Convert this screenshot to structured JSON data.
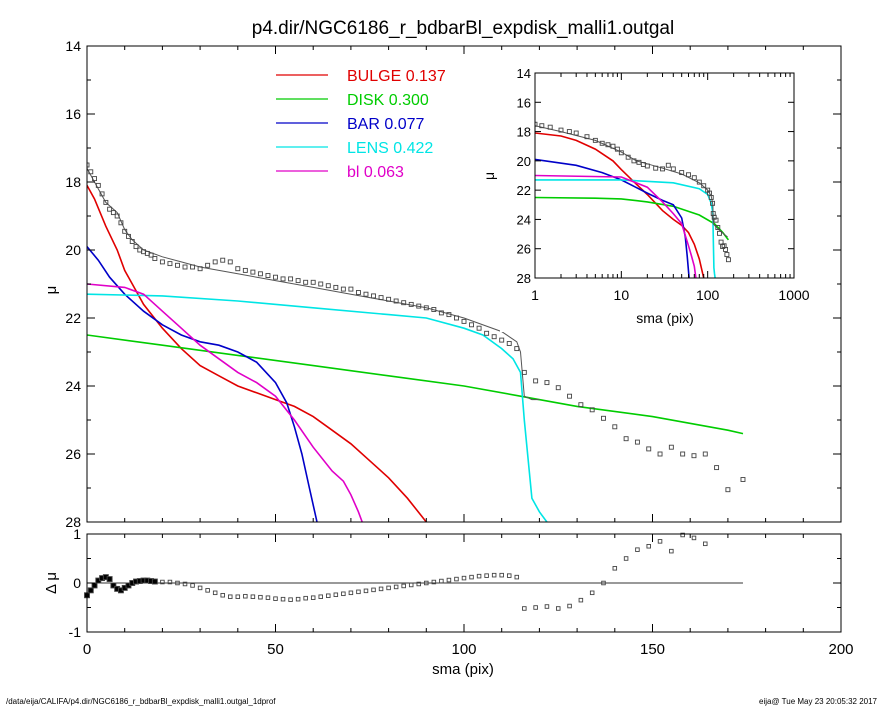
{
  "title": "p4.dir/NGC6186_r_bdbarBl_expdisk_malli1.outgal",
  "footer": {
    "path": "/data/eija/CALIFA/p4.dir/NGC6186_r_bdbarBl_expdisk_malli1.outgal_1dprof",
    "stamp": "eija@  Tue May 23 20:05:32 2017"
  },
  "colors": {
    "bulge": "#e00000",
    "disk": "#00cc00",
    "bar": "#0000c8",
    "lens": "#00e5e5",
    "bl": "#e000c8",
    "total": "#555555",
    "data": "#444444"
  },
  "chart_data": [
    {
      "id": "main",
      "type": "line",
      "xlabel": "sma (pix)",
      "ylabel": "μ",
      "xlim": [
        0,
        200
      ],
      "ylim": [
        28,
        14
      ],
      "xticks": [
        "0",
        "50",
        "100",
        "150",
        "200"
      ],
      "yticks": [
        "14",
        "16",
        "18",
        "20",
        "22",
        "24",
        "26",
        "28"
      ],
      "legend": [
        {
          "label": "BULGE",
          "value": "0.137",
          "series": "bulge"
        },
        {
          "label": "DISK",
          "value": "0.300",
          "series": "disk"
        },
        {
          "label": "BAR",
          "value": "0.077",
          "series": "bar"
        },
        {
          "label": "LENS",
          "value": "0.422",
          "series": "lens"
        },
        {
          "label": "bl",
          "value": "0.063",
          "series": "bl"
        }
      ],
      "series": [
        {
          "key": "bulge",
          "x": [
            0,
            2,
            5,
            8,
            10,
            15,
            20,
            25,
            30,
            35,
            40,
            45,
            50,
            55,
            60,
            65,
            70,
            75,
            80,
            85,
            90
          ],
          "y": [
            18.1,
            18.5,
            19.3,
            20.0,
            20.6,
            21.6,
            22.3,
            22.9,
            23.4,
            23.7,
            24.0,
            24.2,
            24.4,
            24.6,
            24.9,
            25.3,
            25.7,
            26.2,
            26.7,
            27.3,
            28.0
          ]
        },
        {
          "key": "disk",
          "x": [
            0,
            20,
            40,
            60,
            80,
            100,
            115,
            130,
            150,
            170,
            174
          ],
          "y": [
            22.5,
            22.8,
            23.1,
            23.4,
            23.7,
            24.0,
            24.3,
            24.6,
            24.9,
            25.3,
            25.4
          ]
        },
        {
          "key": "bar",
          "x": [
            0,
            3,
            6,
            10,
            15,
            20,
            25,
            30,
            35,
            40,
            45,
            50,
            53,
            55,
            57,
            59,
            61
          ],
          "y": [
            19.9,
            20.3,
            20.8,
            21.3,
            21.8,
            22.2,
            22.5,
            22.7,
            22.8,
            23.0,
            23.3,
            23.9,
            24.5,
            25.2,
            26.0,
            27.0,
            28.0
          ]
        },
        {
          "key": "lens",
          "x": [
            0,
            20,
            40,
            60,
            80,
            90,
            100,
            105,
            110,
            113,
            115,
            116,
            118,
            120,
            122
          ],
          "y": [
            21.3,
            21.35,
            21.5,
            21.7,
            21.9,
            22.0,
            22.3,
            22.5,
            22.9,
            23.2,
            23.6,
            25.0,
            27.3,
            27.7,
            28.0
          ]
        },
        {
          "key": "bl",
          "x": [
            0,
            10,
            15,
            20,
            25,
            30,
            35,
            40,
            45,
            50,
            55,
            60,
            65,
            68,
            70,
            72,
            73
          ],
          "y": [
            21.0,
            21.1,
            21.3,
            21.8,
            22.3,
            22.8,
            23.2,
            23.6,
            23.9,
            24.3,
            25.0,
            25.8,
            26.5,
            26.8,
            27.2,
            27.7,
            28.0
          ]
        },
        {
          "key": "total",
          "x": [
            0,
            2,
            5,
            8,
            10,
            12,
            15,
            20,
            25,
            30,
            35,
            40,
            50,
            60,
            70,
            80,
            90,
            100,
            110,
            114,
            115,
            116,
            118,
            120
          ],
          "y": [
            17.6,
            18.0,
            18.6,
            18.9,
            19.4,
            19.7,
            20.0,
            20.2,
            20.35,
            20.5,
            20.6,
            20.7,
            20.9,
            21.1,
            21.3,
            21.5,
            21.7,
            22.0,
            22.4,
            22.7,
            23.0,
            24.3,
            24.4,
            24.4
          ]
        },
        {
          "key": "data",
          "style": "points",
          "x": [
            0,
            1,
            2,
            3,
            4,
            5,
            6,
            7,
            8,
            9,
            10,
            11,
            12,
            13,
            14,
            15,
            16,
            17,
            18,
            20,
            22,
            24,
            26,
            28,
            30,
            32,
            34,
            36,
            38,
            40,
            42,
            44,
            46,
            48,
            50,
            52,
            54,
            56,
            58,
            60,
            62,
            64,
            66,
            68,
            70,
            72,
            74,
            76,
            78,
            80,
            82,
            84,
            86,
            88,
            90,
            92,
            94,
            96,
            98,
            100,
            102,
            104,
            106,
            108,
            110,
            112,
            114,
            116,
            119,
            122,
            125,
            128,
            131,
            134,
            137,
            140,
            143,
            146,
            149,
            152,
            155,
            158,
            161,
            164,
            167,
            170,
            174
          ],
          "y": [
            17.5,
            17.7,
            17.9,
            18.1,
            18.35,
            18.6,
            18.8,
            18.9,
            19.0,
            19.2,
            19.45,
            19.6,
            19.75,
            19.9,
            20.0,
            20.05,
            20.1,
            20.15,
            20.25,
            20.35,
            20.4,
            20.45,
            20.5,
            20.5,
            20.55,
            20.45,
            20.35,
            20.3,
            20.35,
            20.55,
            20.6,
            20.65,
            20.7,
            20.75,
            20.8,
            20.85,
            20.85,
            20.9,
            20.95,
            20.95,
            21.0,
            21.05,
            21.1,
            21.15,
            21.15,
            21.25,
            21.3,
            21.35,
            21.4,
            21.45,
            21.5,
            21.55,
            21.6,
            21.65,
            21.7,
            21.75,
            21.85,
            21.9,
            22.0,
            22.1,
            22.2,
            22.3,
            22.45,
            22.55,
            22.65,
            22.75,
            22.9,
            23.6,
            23.85,
            23.9,
            24.05,
            24.3,
            24.55,
            24.7,
            24.95,
            25.2,
            25.55,
            25.65,
            25.85,
            26.0,
            25.8,
            26.0,
            26.05,
            26.0,
            26.4,
            27.05,
            26.75
          ]
        }
      ]
    },
    {
      "id": "residual",
      "type": "scatter",
      "xlabel": "sma (pix)",
      "ylabel": "Δ μ",
      "xlim": [
        0,
        200
      ],
      "ylim": [
        -1,
        1
      ],
      "yticks": [
        "1",
        "0",
        "-1"
      ],
      "zero_line_xmax": 174,
      "x": [
        0,
        1,
        2,
        3,
        4,
        5,
        6,
        7,
        8,
        9,
        10,
        11,
        12,
        13,
        14,
        15,
        16,
        17,
        18,
        20,
        22,
        24,
        26,
        28,
        30,
        32,
        34,
        36,
        38,
        40,
        42,
        44,
        46,
        48,
        50,
        52,
        54,
        56,
        58,
        60,
        62,
        64,
        66,
        68,
        70,
        72,
        74,
        76,
        78,
        80,
        82,
        84,
        86,
        88,
        90,
        92,
        94,
        96,
        98,
        100,
        102,
        104,
        106,
        108,
        110,
        112,
        114,
        116,
        119,
        122,
        125,
        128,
        131,
        134,
        137,
        140,
        143,
        146,
        149,
        152,
        155,
        158,
        161,
        164
      ],
      "y": [
        -0.25,
        -0.15,
        -0.05,
        0.05,
        0.1,
        0.12,
        0.08,
        -0.05,
        -0.12,
        -0.15,
        -0.1,
        -0.05,
        0.0,
        0.03,
        0.04,
        0.05,
        0.05,
        0.04,
        0.03,
        0.02,
        0.02,
        0.0,
        -0.02,
        -0.05,
        -0.1,
        -0.15,
        -0.2,
        -0.25,
        -0.28,
        -0.28,
        -0.27,
        -0.28,
        -0.29,
        -0.3,
        -0.32,
        -0.33,
        -0.34,
        -0.33,
        -0.31,
        -0.3,
        -0.28,
        -0.26,
        -0.24,
        -0.22,
        -0.2,
        -0.18,
        -0.16,
        -0.14,
        -0.12,
        -0.1,
        -0.08,
        -0.06,
        -0.04,
        -0.02,
        0.0,
        0.02,
        0.04,
        0.06,
        0.08,
        0.1,
        0.12,
        0.14,
        0.15,
        0.16,
        0.16,
        0.15,
        0.12,
        -0.52,
        -0.5,
        -0.48,
        -0.52,
        -0.47,
        -0.35,
        -0.2,
        0.0,
        0.3,
        0.5,
        0.68,
        0.75,
        0.85,
        0.65,
        0.98,
        0.92,
        0.8
      ]
    },
    {
      "id": "inset",
      "type": "line",
      "xscale": "log",
      "xlabel": "sma (pix)",
      "ylabel": "μ",
      "xlim": [
        1,
        1000
      ],
      "ylim": [
        28,
        14
      ],
      "xticks": [
        "1",
        "10",
        "100",
        "1000"
      ],
      "yticks": [
        "14",
        "16",
        "18",
        "20",
        "22",
        "24",
        "26",
        "28"
      ],
      "series": [
        {
          "key": "bulge",
          "x": [
            1,
            2,
            3,
            5,
            8,
            10,
            15,
            20,
            30,
            40,
            50,
            60,
            70,
            80,
            90
          ],
          "y": [
            18.1,
            18.3,
            18.6,
            19.2,
            20.0,
            20.6,
            21.6,
            22.3,
            23.4,
            24.0,
            24.4,
            24.9,
            25.7,
            26.7,
            28.0
          ]
        },
        {
          "key": "disk",
          "x": [
            1,
            5,
            10,
            20,
            40,
            80,
            120,
            150,
            174
          ],
          "y": [
            22.5,
            22.55,
            22.6,
            22.8,
            23.1,
            23.7,
            24.3,
            24.9,
            25.4
          ]
        },
        {
          "key": "bar",
          "x": [
            1,
            3,
            6,
            10,
            20,
            30,
            40,
            50,
            55,
            58,
            61
          ],
          "y": [
            19.9,
            20.3,
            20.8,
            21.3,
            22.2,
            22.7,
            23.0,
            23.9,
            25.2,
            26.5,
            28.0
          ]
        },
        {
          "key": "lens",
          "x": [
            1,
            10,
            40,
            80,
            100,
            110,
            115,
            116,
            118,
            120,
            122
          ],
          "y": [
            21.3,
            21.3,
            21.5,
            21.9,
            22.3,
            22.9,
            23.6,
            25.0,
            27.3,
            27.7,
            28.0
          ]
        },
        {
          "key": "bl",
          "x": [
            1,
            10,
            20,
            30,
            40,
            50,
            60,
            65,
            70,
            73
          ],
          "y": [
            21.0,
            21.1,
            21.8,
            22.8,
            23.6,
            24.3,
            25.8,
            26.5,
            27.2,
            28.0
          ]
        },
        {
          "key": "total",
          "x": [
            1,
            2,
            5,
            10,
            15,
            20,
            30,
            50,
            80,
            100,
            110,
            115,
            116,
            120,
            140,
            170
          ],
          "y": [
            17.6,
            18.0,
            18.6,
            19.4,
            20.0,
            20.2,
            20.5,
            20.9,
            21.5,
            22.0,
            22.4,
            23.0,
            24.3,
            24.4,
            24.8,
            25.2
          ]
        },
        {
          "key": "data",
          "style": "points",
          "x": [
            1,
            1.2,
            1.5,
            2,
            2.5,
            3,
            4,
            5,
            6,
            7,
            8,
            9,
            10,
            12,
            14,
            16,
            18,
            20,
            25,
            30,
            35,
            40,
            50,
            60,
            70,
            80,
            90,
            100,
            105,
            110,
            114,
            116,
            119,
            125,
            131,
            137,
            143,
            149,
            155,
            161,
            167,
            174
          ],
          "y": [
            17.5,
            17.6,
            17.7,
            17.9,
            18.0,
            18.1,
            18.35,
            18.6,
            18.8,
            18.9,
            19.0,
            19.2,
            19.45,
            19.75,
            20.0,
            20.1,
            20.25,
            20.35,
            20.5,
            20.55,
            20.3,
            20.55,
            20.8,
            20.95,
            21.15,
            21.45,
            21.7,
            22.0,
            22.2,
            22.5,
            22.9,
            23.6,
            23.85,
            24.05,
            24.55,
            24.95,
            25.55,
            25.85,
            25.8,
            26.05,
            26.4,
            26.75
          ]
        }
      ]
    }
  ]
}
